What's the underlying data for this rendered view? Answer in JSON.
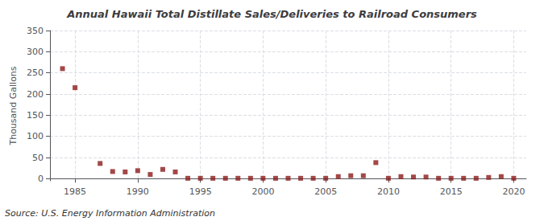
{
  "chart_data": {
    "type": "scatter",
    "title": "Annual Hawaii Total Distillate Sales/Deliveries to Railroad Consumers",
    "ylabel": "Thousand Gallons",
    "annotations": [
      "Source: U.S. Energy Information Administration"
    ],
    "x": [
      1984,
      1985,
      1987,
      1988,
      1989,
      1990,
      1991,
      1992,
      1993,
      1994,
      1995,
      1996,
      1997,
      1998,
      1999,
      2000,
      2001,
      2002,
      2003,
      2004,
      2005,
      2006,
      2007,
      2008,
      2009,
      2010,
      2011,
      2012,
      2013,
      2014,
      2015,
      2016,
      2017,
      2018,
      2019,
      2020
    ],
    "values": [
      260,
      215,
      36,
      17,
      16,
      19,
      10,
      22,
      16,
      1,
      1,
      1,
      1,
      1,
      1,
      1,
      1,
      1,
      1,
      1,
      1,
      5,
      7,
      7,
      38,
      1,
      5,
      4,
      4,
      1,
      1,
      1,
      1,
      3,
      5,
      1
    ],
    "color": "#8b1a1a",
    "marker": "square",
    "xlim": [
      1983,
      2021
    ],
    "xticks": [
      1985,
      1990,
      1995,
      2000,
      2005,
      2010,
      2015,
      2020
    ],
    "ylim": [
      -5,
      350
    ],
    "yticks": [
      0,
      50,
      100,
      150,
      200,
      250,
      300,
      350
    ],
    "grid": true
  }
}
